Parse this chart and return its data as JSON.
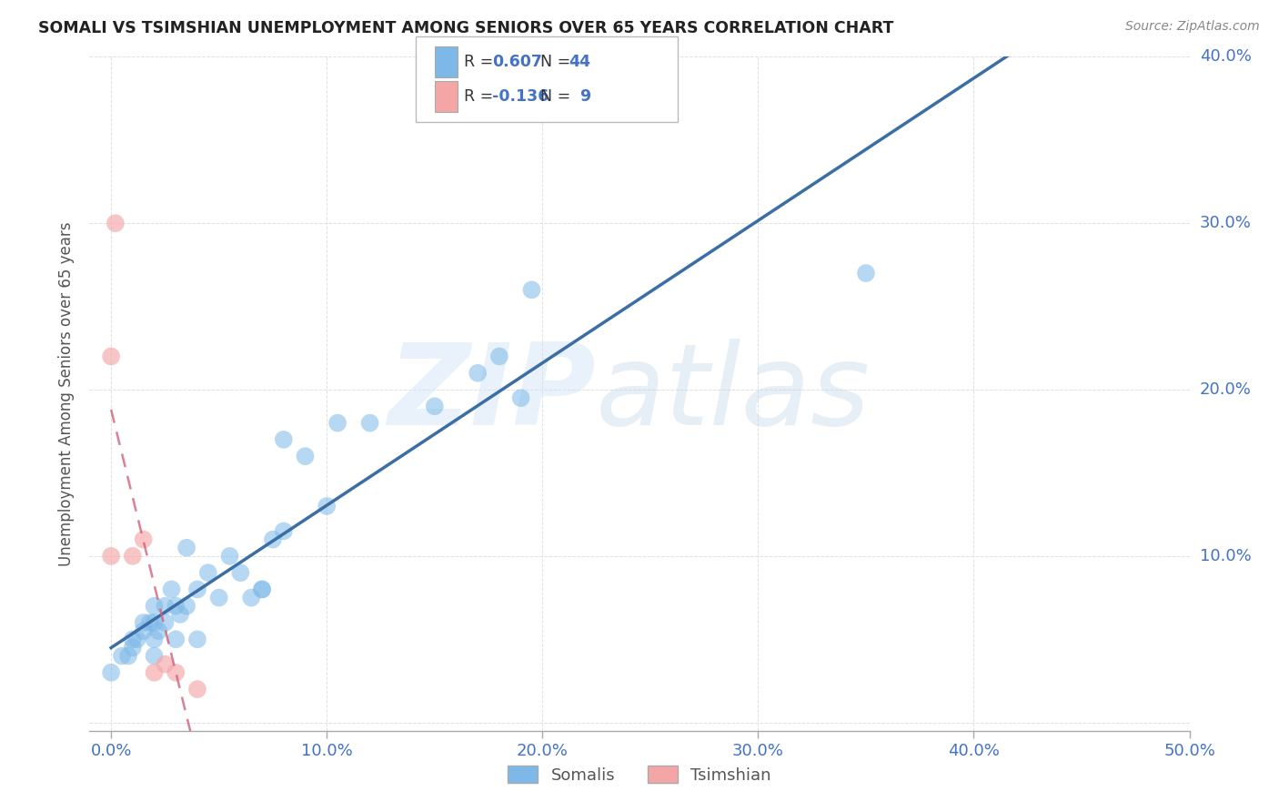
{
  "title": "SOMALI VS TSIMSHIAN UNEMPLOYMENT AMONG SENIORS OVER 65 YEARS CORRELATION CHART",
  "source": "Source: ZipAtlas.com",
  "ylabel": "Unemployment Among Seniors over 65 years",
  "xlim": [
    -1.0,
    50.0
  ],
  "ylim": [
    -0.5,
    40.0
  ],
  "xticks": [
    0.0,
    10.0,
    20.0,
    30.0,
    40.0,
    50.0
  ],
  "yticks": [
    0.0,
    10.0,
    20.0,
    30.0,
    40.0
  ],
  "xtick_labels": [
    "0.0%",
    "10.0%",
    "20.0%",
    "30.0%",
    "40.0%",
    "50.0%"
  ],
  "ytick_labels_right": [
    "",
    "10.0%",
    "20.0%",
    "30.0%",
    "40.0%"
  ],
  "somali_R": 0.607,
  "somali_N": 44,
  "tsimshian_R": -0.136,
  "tsimshian_N": 9,
  "somali_color": "#7db8e8",
  "tsimshian_color": "#f4a6a6",
  "somali_line_color": "#3a6ea5",
  "tsimshian_line_color": "#d4607a",
  "accent_color": "#4472c4",
  "somali_x": [
    0.0,
    0.5,
    0.8,
    1.0,
    1.0,
    1.2,
    1.5,
    1.5,
    1.8,
    2.0,
    2.0,
    2.0,
    2.0,
    2.2,
    2.5,
    2.5,
    2.8,
    3.0,
    3.0,
    3.2,
    3.5,
    3.5,
    4.0,
    4.0,
    4.5,
    5.0,
    5.5,
    6.0,
    6.5,
    7.0,
    7.0,
    7.5,
    8.0,
    8.0,
    9.0,
    10.0,
    10.5,
    12.0,
    15.0,
    17.0,
    18.0,
    19.0,
    19.5,
    35.0
  ],
  "somali_y": [
    3.0,
    4.0,
    4.0,
    4.5,
    5.0,
    5.0,
    5.5,
    6.0,
    6.0,
    4.0,
    5.0,
    6.0,
    7.0,
    5.5,
    6.0,
    7.0,
    8.0,
    5.0,
    7.0,
    6.5,
    7.0,
    10.5,
    5.0,
    8.0,
    9.0,
    7.5,
    10.0,
    9.0,
    7.5,
    8.0,
    8.0,
    11.0,
    11.5,
    17.0,
    16.0,
    13.0,
    18.0,
    18.0,
    19.0,
    21.0,
    22.0,
    19.5,
    26.0,
    27.0
  ],
  "tsimshian_x": [
    0.0,
    0.0,
    0.2,
    1.0,
    1.5,
    2.0,
    2.5,
    3.0,
    4.0
  ],
  "tsimshian_y": [
    10.0,
    22.0,
    30.0,
    10.0,
    11.0,
    3.0,
    3.5,
    3.0,
    2.0
  ],
  "background_color": "#ffffff",
  "grid_color": "#e0e0e0"
}
